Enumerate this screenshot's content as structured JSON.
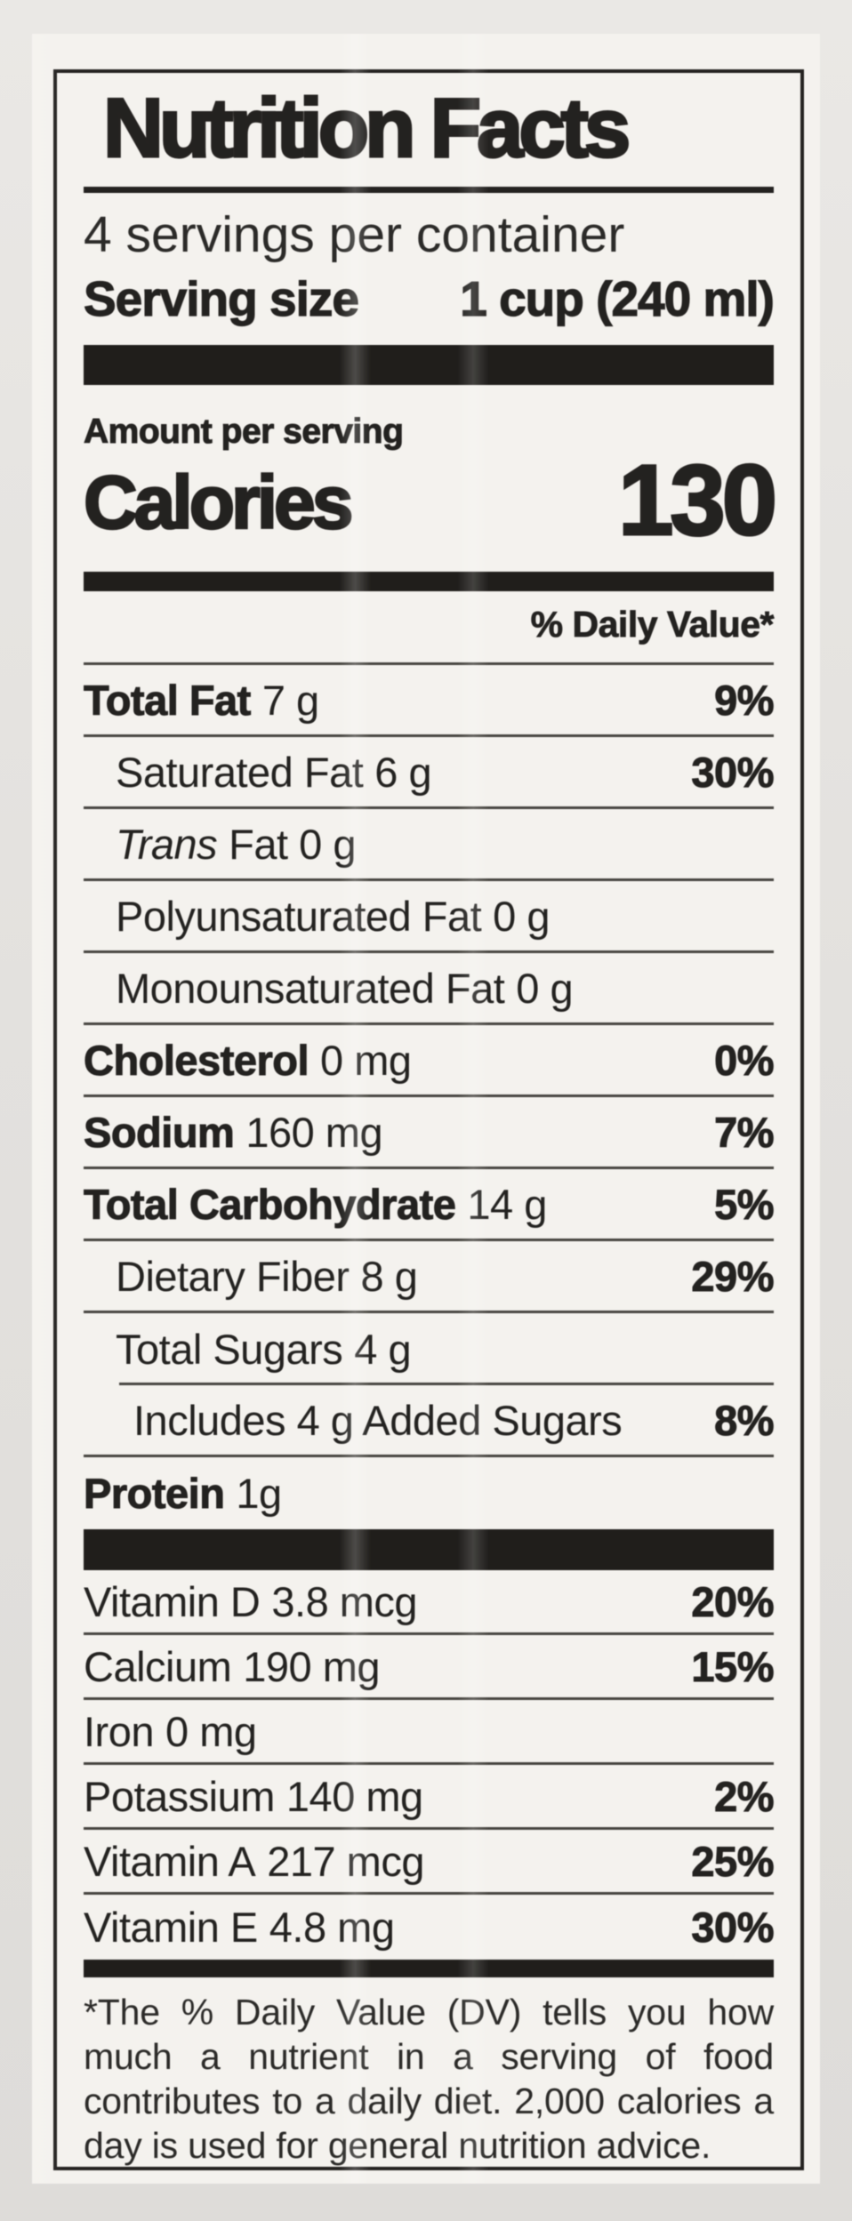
{
  "label": {
    "title": "Nutrition Facts",
    "servings_per_container": "4 servings per container",
    "serving_size": {
      "label": "Serving size",
      "value": "1 cup (240 ml)"
    },
    "amount_per_serving": "Amount per serving",
    "calories": {
      "label": "Calories",
      "value": "130"
    },
    "daily_value_header": "% Daily Value*",
    "footnote": "*The % Daily Value (DV) tells you how much a nutrient in a serving of food contributes to a daily diet. 2,000 calories a day is used for general nutrition advice."
  },
  "nutrients": [
    {
      "name": "Total Fat",
      "amount": "7 g",
      "dv": "9%"
    },
    {
      "name": "Saturated Fat",
      "amount": "6 g",
      "dv": "30%"
    },
    {
      "name": "Trans",
      "amount": "Fat 0 g",
      "dv": ""
    },
    {
      "name": "Polyunsaturated Fat",
      "amount": "0 g",
      "dv": ""
    },
    {
      "name": "Monounsaturated Fat",
      "amount": "0 g",
      "dv": ""
    },
    {
      "name": "Cholesterol",
      "amount": "0 mg",
      "dv": "0%"
    },
    {
      "name": "Sodium",
      "amount": "160 mg",
      "dv": "7%"
    },
    {
      "name": "Total Carbohydrate",
      "amount": "14 g",
      "dv": "5%"
    },
    {
      "name": "Dietary Fiber",
      "amount": "8 g",
      "dv": "29%"
    },
    {
      "name": "Total Sugars",
      "amount": "4 g",
      "dv": ""
    },
    {
      "name": "Includes 4 g Added Sugars",
      "amount": "",
      "dv": "8%"
    },
    {
      "name": "Protein",
      "amount": "1g",
      "dv": ""
    }
  ],
  "vitamins": [
    {
      "name": "Vitamin D",
      "amount": "3.8 mcg",
      "dv": "20%"
    },
    {
      "name": "Calcium",
      "amount": "190 mg",
      "dv": "15%"
    },
    {
      "name": "Iron",
      "amount": "0 mg",
      "dv": ""
    },
    {
      "name": "Potassium",
      "amount": "140 mg",
      "dv": "2%"
    },
    {
      "name": "Vitamin A",
      "amount": "217 mcg",
      "dv": "25%"
    },
    {
      "name": "Vitamin E",
      "amount": "4.8 mg",
      "dv": "30%"
    }
  ],
  "colors": {
    "photo_background": "#e3e1de",
    "label_background": "#f4f2ee",
    "ink": "#242220",
    "separator_bar": "#201e1b",
    "hairline": "#46443f"
  }
}
